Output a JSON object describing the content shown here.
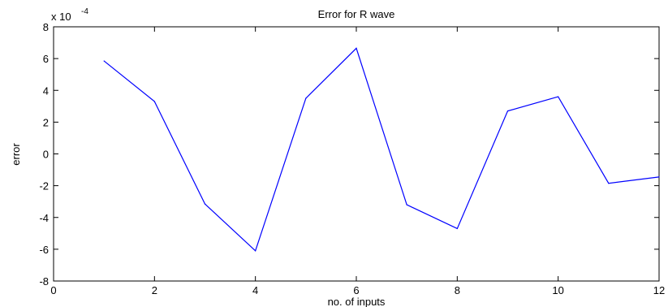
{
  "chart_data": {
    "type": "line",
    "title": "Error for R wave",
    "xlabel": "no. of inputs",
    "ylabel": "error",
    "y_multiplier_label": "x 10",
    "y_multiplier_exponent": "-4",
    "xlim": [
      0,
      12
    ],
    "ylim": [
      -8,
      8
    ],
    "x_ticks": [
      0,
      2,
      4,
      6,
      8,
      10,
      12
    ],
    "y_ticks": [
      -8,
      -6,
      -4,
      -2,
      0,
      2,
      4,
      6,
      8
    ],
    "grid": false,
    "line_color": "#0000ff",
    "series": [
      {
        "x": [
          1,
          2,
          3,
          4,
          5,
          6,
          7,
          8,
          9,
          10,
          11,
          12
        ],
        "values": [
          5.85,
          3.3,
          -3.15,
          -6.1,
          3.5,
          6.65,
          -3.2,
          -4.7,
          2.7,
          3.6,
          -1.85,
          -1.45
        ]
      }
    ]
  }
}
